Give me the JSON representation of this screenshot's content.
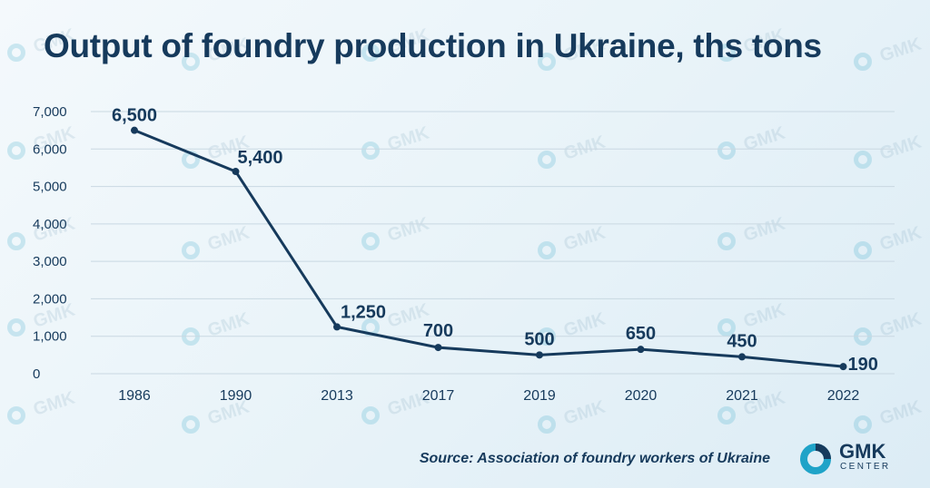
{
  "title": "Output of foundry production in Ukraine, ths tons",
  "source": "Source: Association of foundry workers of Ukraine",
  "logo": {
    "name": "GMK",
    "sub": "CENTER",
    "icon": "gmk-ring-icon"
  },
  "watermark": {
    "text": "GMK",
    "icon": "gmk-ring-icon"
  },
  "colors": {
    "line": "#163a5c",
    "text": "#163a5c",
    "grid": "#c9d8e2",
    "accent": "#1fa3c8"
  },
  "chart_data": {
    "type": "line",
    "title": "Output of foundry production in Ukraine, ths tons",
    "xlabel": "",
    "ylabel": "",
    "categories": [
      "1986",
      "1990",
      "2013",
      "2017",
      "2019",
      "2020",
      "2021",
      "2022"
    ],
    "series": [
      {
        "values": [
          6500,
          5400,
          1250,
          700,
          500,
          650,
          450,
          190
        ]
      }
    ],
    "data_labels": [
      "6,500",
      "5,400",
      "1,250",
      "700",
      "500",
      "650",
      "450",
      "190"
    ],
    "y_ticks": [
      0,
      1000,
      2000,
      3000,
      4000,
      5000,
      6000,
      7000
    ],
    "y_tick_labels": [
      "0",
      "1,000",
      "2,000",
      "3,000",
      "4,000",
      "5,000",
      "6,000",
      "7,000"
    ],
    "ylim": [
      0,
      7000
    ],
    "grid": true,
    "legend": "none"
  }
}
